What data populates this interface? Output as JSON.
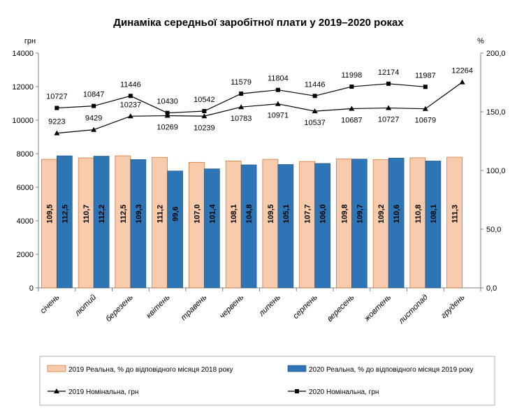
{
  "chart_data": {
    "type": "bar",
    "title": "Динаміка середньої заробітної плати у 2019–2020 роках",
    "left_axis_unit": "грн",
    "right_axis_unit": "%",
    "left_ylim": [
      0,
      14000
    ],
    "left_ticks": [
      "0",
      "2000",
      "4000",
      "6000",
      "8000",
      "10000",
      "12000",
      "14000"
    ],
    "right_ylim": [
      0,
      200
    ],
    "right_ticks": [
      "0,0",
      "50,0",
      "100,0",
      "150,0",
      "200,0"
    ],
    "categories": [
      "січень",
      "лютий",
      "березень",
      "квітень",
      "травень",
      "червень",
      "липень",
      "серпень",
      "вересень",
      "жовтень",
      "листопад",
      "грудень"
    ],
    "series": [
      {
        "name": "2019 Реальна, % до відповідного місяця 2018 року",
        "kind": "bar",
        "axis": "right",
        "color": "#F8CBAD",
        "values": [
          109.5,
          110.7,
          112.5,
          111.2,
          107.0,
          108.1,
          109.5,
          107.7,
          109.8,
          109.2,
          110.8,
          111.3
        ],
        "labels": [
          "109,5",
          "110,7",
          "112,5",
          "111,2",
          "107,0",
          "108,1",
          "109,5",
          "107,7",
          "109,8",
          "109,2",
          "110,8",
          "111,3"
        ]
      },
      {
        "name": "2020 Реальна, % до відповідного місяця 2019 року",
        "kind": "bar",
        "axis": "right",
        "color": "#2E75B6",
        "values": [
          112.5,
          112.2,
          109.3,
          99.6,
          101.4,
          104.8,
          105.1,
          106.0,
          109.7,
          110.6,
          108.1,
          null
        ],
        "labels": [
          "112,5",
          "112,2",
          "109,3",
          "99,6",
          "101,4",
          "104,8",
          "105,1",
          "106,0",
          "109,7",
          "110,6",
          "108,1",
          null
        ]
      },
      {
        "name": "2019 Номінальна, грн",
        "kind": "line",
        "axis": "left",
        "marker": "triangle",
        "color": "#000000",
        "values": [
          9223,
          9429,
          10237,
          10269,
          10239,
          10783,
          10971,
          10537,
          10687,
          10727,
          10679,
          12264
        ],
        "labels": [
          "9223",
          "9429",
          "10237",
          "10269",
          "10239",
          "10783",
          "10971",
          "10537",
          "10687",
          "10727",
          "10679",
          "12264"
        ]
      },
      {
        "name": "2020 Номінальна, грн",
        "kind": "line",
        "axis": "left",
        "marker": "square",
        "color": "#000000",
        "values": [
          10727,
          10847,
          11446,
          10430,
          10542,
          11579,
          11804,
          11446,
          11998,
          12174,
          11987,
          null
        ],
        "labels": [
          "10727",
          "10847",
          "11446",
          "10430",
          "10542",
          "11579",
          "11804",
          "11446",
          "11998",
          "12174",
          "11987",
          null
        ]
      }
    ],
    "legend": {
      "placement": "bottom",
      "entries": [
        "2019 Реальна, % до відповідного місяця 2018 року",
        "2020 Реальна, % до відповідного місяця 2019 року",
        "2019 Номінальна, грн",
        "2020 Номінальна, грн"
      ]
    }
  }
}
